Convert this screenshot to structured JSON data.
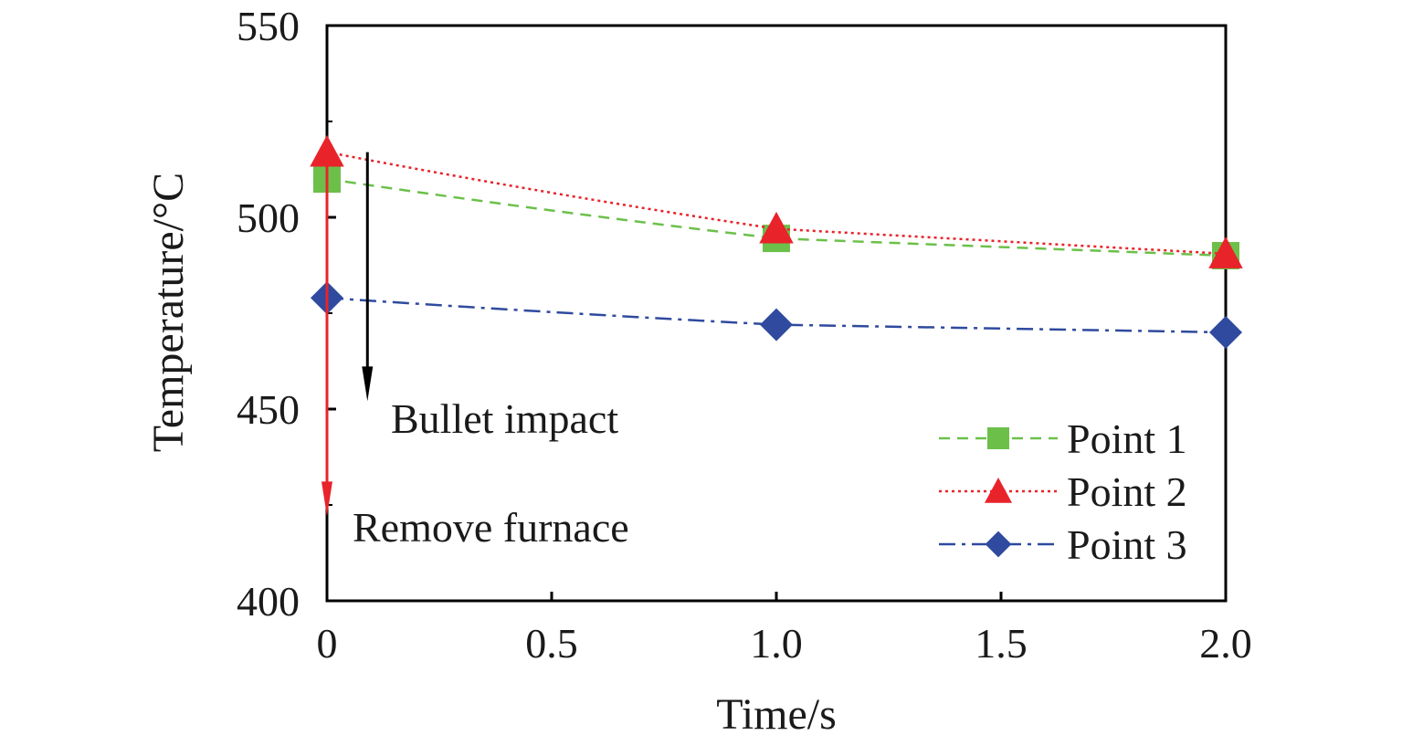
{
  "chart_data": {
    "type": "line",
    "x": [
      0,
      1.0,
      2.0
    ],
    "xlabel": "Time/s",
    "ylabel": "Temperature/°C",
    "xlim": [
      0,
      2.0
    ],
    "ylim": [
      400,
      550
    ],
    "x_tick_labels": [
      "0",
      "0.5",
      "1.0",
      "1.5",
      "2.0"
    ],
    "y_tick_labels": [
      "400",
      "450",
      "500",
      "550"
    ],
    "series": [
      {
        "name": "Point 1",
        "values": [
          510,
          494.5,
          490
        ],
        "color": "#6cc04a",
        "marker": "square",
        "line": "dashed"
      },
      {
        "name": "Point 2",
        "values": [
          517,
          497,
          490.5
        ],
        "color": "#e8232a",
        "marker": "triangle",
        "line": "dotted"
      },
      {
        "name": "Point 3",
        "values": [
          479,
          472,
          470
        ],
        "color": "#2f4a9e",
        "marker": "diamond",
        "line": "dash-dot"
      }
    ],
    "annotations": [
      {
        "text": "Bullet impact",
        "arrow_color": "#000000",
        "arrow_x": 0.09,
        "arrow_from": 517,
        "arrow_to": 453
      },
      {
        "text": "Remove furnace",
        "arrow_color": "#e8232a",
        "arrow_x": 0,
        "arrow_from": 517,
        "arrow_to": 423
      }
    ],
    "legend_position": "bottom-right",
    "grid": false
  }
}
